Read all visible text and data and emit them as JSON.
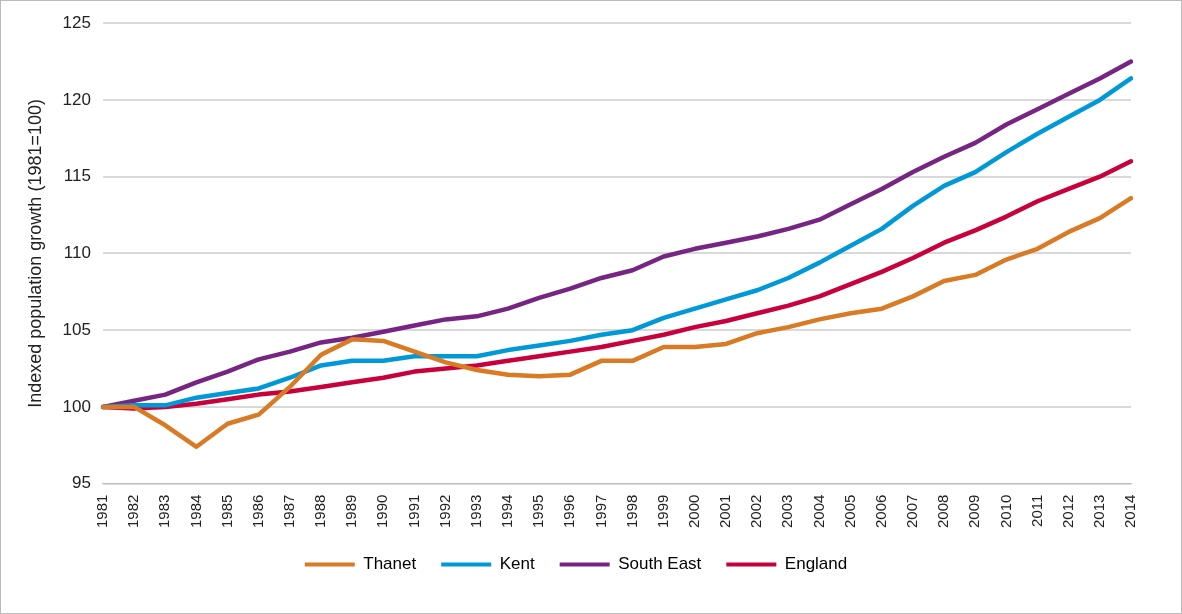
{
  "chart_data": {
    "type": "line",
    "ylabel": "Indexed population growth (1981=100)",
    "categories": [
      "1981",
      "1982",
      "1983",
      "1984",
      "1985",
      "1986",
      "1987",
      "1988",
      "1989",
      "1990",
      "1991",
      "1992",
      "1993",
      "1994",
      "1995",
      "1996",
      "1997",
      "1998",
      "1999",
      "2000",
      "2001",
      "2002",
      "2003",
      "2004",
      "2005",
      "2006",
      "2007",
      "2008",
      "2009",
      "2010",
      "2011",
      "2012",
      "2013",
      "2014"
    ],
    "series": [
      {
        "name": "Thanet",
        "color": "#d97a24",
        "values": [
          100,
          100.0,
          98.8,
          97.4,
          98.9,
          99.5,
          101.3,
          103.4,
          104.4,
          104.3,
          103.6,
          102.9,
          102.4,
          102.1,
          102.0,
          102.1,
          103.0,
          103.0,
          103.9,
          103.9,
          104.1,
          104.8,
          105.2,
          105.7,
          106.1,
          106.4,
          107.2,
          108.2,
          108.6,
          109.6,
          110.3,
          111.4,
          112.3,
          113.6
        ]
      },
      {
        "name": "Kent",
        "color": "#0099d8",
        "values": [
          100,
          100.1,
          100.1,
          100.6,
          100.9,
          101.2,
          101.9,
          102.7,
          103.0,
          103.0,
          103.3,
          103.3,
          103.3,
          103.7,
          104.0,
          104.3,
          104.7,
          105.0,
          105.8,
          106.4,
          107.0,
          107.6,
          108.4,
          109.4,
          110.5,
          111.6,
          113.1,
          114.4,
          115.3,
          116.6,
          117.8,
          118.9,
          120.0,
          121.4
        ]
      },
      {
        "name": "South East",
        "color": "#772583",
        "values": [
          100,
          100.4,
          100.8,
          101.6,
          102.3,
          103.1,
          103.6,
          104.2,
          104.5,
          104.9,
          105.3,
          105.7,
          105.9,
          106.4,
          107.1,
          107.7,
          108.4,
          108.9,
          109.8,
          110.3,
          110.7,
          111.1,
          111.6,
          112.2,
          113.2,
          114.2,
          115.3,
          116.3,
          117.2,
          118.4,
          119.4,
          120.4,
          121.4,
          122.5
        ]
      },
      {
        "name": "England",
        "color": "#c8003c",
        "values": [
          100,
          99.9,
          100.0,
          100.2,
          100.5,
          100.8,
          101.0,
          101.3,
          101.6,
          101.9,
          102.3,
          102.5,
          102.7,
          103.0,
          103.3,
          103.6,
          103.9,
          104.3,
          104.7,
          105.2,
          105.6,
          106.1,
          106.6,
          107.2,
          108.0,
          108.8,
          109.7,
          110.7,
          111.5,
          112.4,
          113.4,
          114.2,
          115.0,
          116.0
        ]
      }
    ],
    "ylim": [
      95,
      125
    ],
    "yticks": [
      95,
      100,
      105,
      110,
      115,
      120,
      125
    ],
    "grid": "y",
    "legend": "bottom",
    "marker": "none",
    "line_style": "solid"
  }
}
